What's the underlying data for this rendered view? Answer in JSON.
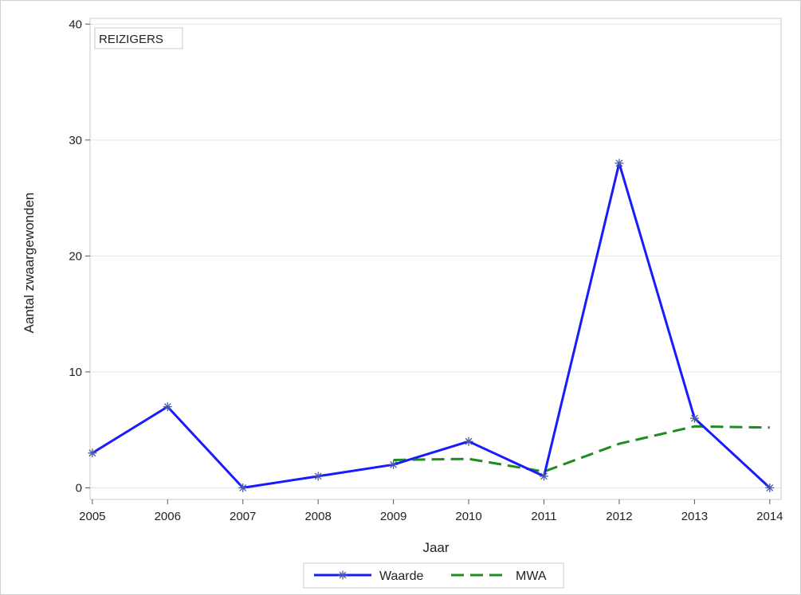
{
  "chart_data": {
    "type": "line",
    "title": "",
    "inset_label": "REIZIGERS",
    "xlabel": "Jaar",
    "ylabel": "Aantal zwaargewonden",
    "x": [
      2005,
      2006,
      2007,
      2008,
      2009,
      2010,
      2011,
      2012,
      2013,
      2014
    ],
    "xticks": [
      "2005",
      "2006",
      "2007",
      "2008",
      "2009",
      "2010",
      "2011",
      "2012",
      "2013",
      "2014"
    ],
    "yticks": [
      0,
      10,
      20,
      30,
      40
    ],
    "ylim": [
      -1,
      40.5
    ],
    "xlim": [
      2004.97,
      2014.15
    ],
    "grid": true,
    "legend_position": "bottom-center",
    "series": [
      {
        "name": "Waarde",
        "style": "solid",
        "marker": "star",
        "color": "#1a1aff",
        "x": [
          2005,
          2006,
          2007,
          2008,
          2009,
          2010,
          2011,
          2012,
          2013,
          2014
        ],
        "values": [
          3,
          7,
          0,
          1,
          2,
          4,
          1,
          28,
          6,
          0
        ]
      },
      {
        "name": "MWA",
        "style": "dashed",
        "marker": "none",
        "color": "#1f8c1f",
        "x": [
          2009,
          2010,
          2011,
          2012,
          2013,
          2014
        ],
        "values": [
          2.4,
          2.5,
          1.4,
          3.8,
          5.3,
          5.2
        ]
      }
    ]
  }
}
